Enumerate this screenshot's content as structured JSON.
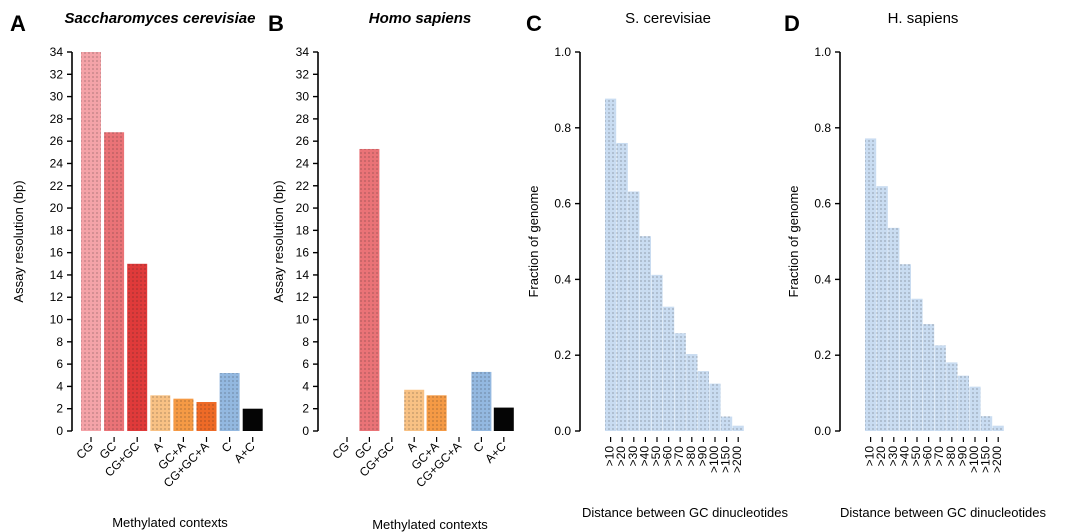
{
  "chart_data": [
    {
      "letter": "A",
      "title": "Saccharomyces cerevisiae",
      "type": "bar",
      "xlabel": "Methylated contexts",
      "ylabel": "Assay resolution (bp)",
      "ylim": [
        0,
        34
      ],
      "yticks": [
        0,
        2,
        4,
        6,
        8,
        10,
        12,
        14,
        16,
        18,
        20,
        22,
        24,
        26,
        28,
        30,
        32,
        34
      ],
      "categories": [
        "CG",
        "GC",
        "CG+GC",
        "A",
        "GC+A",
        "CG+GC+A",
        "C",
        "A+C"
      ],
      "values": [
        34.0,
        26.8,
        15.0,
        3.2,
        2.9,
        2.6,
        5.2,
        2.0
      ],
      "colors": [
        "#f4a3a8",
        "#ea7377",
        "#e03a3a",
        "#f8c184",
        "#f59a45",
        "#ee6a27",
        "#93b8e0",
        "#050505"
      ]
    },
    {
      "letter": "B",
      "title": "Homo sapiens",
      "type": "bar",
      "xlabel": "Methylated contexts",
      "ylabel": "Assay resolution (bp)",
      "ylim": [
        0,
        34
      ],
      "yticks": [
        0,
        2,
        4,
        6,
        8,
        10,
        12,
        14,
        16,
        18,
        20,
        22,
        24,
        26,
        28,
        30,
        32,
        34
      ],
      "categories": [
        "CG",
        "GC",
        "CG+GC",
        "A",
        "GC+A",
        "CG+GC+A",
        "C",
        "A+C"
      ],
      "values": [
        null,
        25.3,
        null,
        3.7,
        3.2,
        null,
        5.3,
        2.1
      ],
      "colors": [
        "#f4a3a8",
        "#ea7377",
        "#e03a3a",
        "#f8c184",
        "#f59a45",
        "#ee6a27",
        "#93b8e0",
        "#050505"
      ]
    },
    {
      "letter": "C",
      "title": "S. cerevisiae",
      "type": "bar",
      "xlabel": "Distance between GC dinucleotides",
      "ylabel": "Fraction of genome",
      "ylim": [
        0,
        1.0
      ],
      "yticks": [
        "0.0",
        "0.2",
        "0.4",
        "0.6",
        "0.8",
        "1.0"
      ],
      "categories": [
        ">10",
        ">20",
        ">30",
        ">40",
        ">50",
        ">60",
        ">70",
        ">80",
        ">90",
        ">100",
        ">150",
        ">200"
      ],
      "values": [
        0.877,
        0.76,
        0.632,
        0.514,
        0.412,
        0.328,
        0.258,
        0.203,
        0.158,
        0.125,
        0.038,
        0.014
      ],
      "color": "#c9dcf1"
    },
    {
      "letter": "D",
      "title": "H. sapiens",
      "type": "bar",
      "xlabel": "Distance between GC dinucleotides",
      "ylabel": "Fraction of genome",
      "ylim": [
        0,
        1.0
      ],
      "yticks": [
        "0.0",
        "0.2",
        "0.4",
        "0.6",
        "0.8",
        "1.0"
      ],
      "categories": [
        ">10",
        ">20",
        ">30",
        ">40",
        ">50",
        ">60",
        ">70",
        ">80",
        ">90",
        ">100",
        ">150",
        ">200"
      ],
      "values": [
        0.772,
        0.646,
        0.536,
        0.44,
        0.349,
        0.282,
        0.226,
        0.181,
        0.146,
        0.117,
        0.039,
        0.014
      ],
      "color": "#c9dcf1"
    }
  ]
}
